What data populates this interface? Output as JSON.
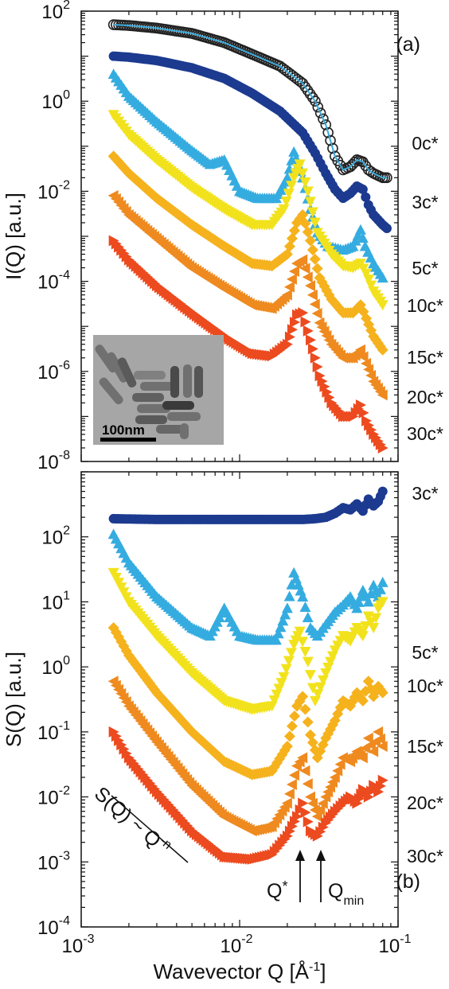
{
  "chart_data": [
    {
      "panel": "(a)",
      "type": "scatter",
      "scale": {
        "x": "log",
        "y": "log"
      },
      "xlim": [
        0.001,
        0.1
      ],
      "ylim": [
        1e-08,
        100
      ],
      "ylabel": "I(Q) [a.u.]",
      "y_tick_labels": [
        {
          "value": 100,
          "base": "10",
          "exp": "2"
        },
        {
          "value": 1,
          "base": "10",
          "exp": "0"
        },
        {
          "value": 0.01,
          "base": "10",
          "exp": "-2"
        },
        {
          "value": 0.0001,
          "base": "10",
          "exp": "-4"
        },
        {
          "value": 1e-06,
          "base": "10",
          "exp": "-6"
        },
        {
          "value": 1e-08,
          "base": "10",
          "exp": "-8"
        }
      ],
      "series": [
        {
          "name": "0c*",
          "color": "#222222",
          "marker": "circle-open",
          "fit_color": "#3aa8d8",
          "x": [
            0.0016,
            0.002,
            0.003,
            0.005,
            0.008,
            0.012,
            0.018,
            0.025,
            0.03,
            0.035,
            0.04,
            0.045,
            0.05,
            0.055,
            0.06,
            0.065,
            0.07,
            0.08,
            0.085
          ],
          "y": [
            50,
            48,
            42,
            32,
            20,
            11,
            6,
            2.5,
            1,
            0.3,
            0.06,
            0.03,
            0.035,
            0.05,
            0.045,
            0.03,
            0.025,
            0.02,
            0.02
          ]
        },
        {
          "name": "3c*",
          "color": "#1c3a8f",
          "marker": "circle",
          "x": [
            0.0016,
            0.002,
            0.003,
            0.005,
            0.008,
            0.012,
            0.018,
            0.025,
            0.03,
            0.035,
            0.04,
            0.045,
            0.05,
            0.055,
            0.06,
            0.065,
            0.07,
            0.08,
            0.085
          ],
          "y": [
            10,
            9.5,
            8,
            5.5,
            3.2,
            1.5,
            0.6,
            0.2,
            0.07,
            0.025,
            0.011,
            0.007,
            0.009,
            0.013,
            0.011,
            0.005,
            0.003,
            0.0018,
            0.0015
          ]
        },
        {
          "name": "5c*",
          "color": "#35ace0",
          "marker": "triangle-up",
          "x": [
            0.0016,
            0.002,
            0.003,
            0.005,
            0.0065,
            0.008,
            0.01,
            0.013,
            0.017,
            0.02,
            0.022,
            0.025,
            0.028,
            0.031,
            0.036,
            0.045,
            0.052,
            0.058,
            0.062,
            0.07,
            0.08
          ],
          "y": [
            4,
            1.3,
            0.35,
            0.08,
            0.04,
            0.05,
            0.01,
            0.007,
            0.007,
            0.02,
            0.075,
            0.02,
            0.004,
            0.0012,
            0.0006,
            0.0005,
            0.0006,
            0.0014,
            0.0006,
            0.00025,
            0.00012
          ]
        },
        {
          "name": "10c*",
          "color": "#f2e21d",
          "marker": "triangle-down",
          "x": [
            0.0016,
            0.002,
            0.003,
            0.005,
            0.008,
            0.012,
            0.016,
            0.019,
            0.022,
            0.024,
            0.027,
            0.031,
            0.038,
            0.045,
            0.052,
            0.058,
            0.063,
            0.07,
            0.08
          ],
          "y": [
            0.5,
            0.18,
            0.05,
            0.012,
            0.004,
            0.0018,
            0.0018,
            0.004,
            0.02,
            0.04,
            0.01,
            0.0012,
            0.0004,
            0.00022,
            0.0002,
            0.00025,
            0.00015,
            6e-05,
            3e-05
          ]
        },
        {
          "name": "15c*",
          "color": "#f5b21d",
          "marker": "diamond",
          "x": [
            0.0016,
            0.002,
            0.003,
            0.005,
            0.008,
            0.012,
            0.016,
            0.02,
            0.023,
            0.025,
            0.028,
            0.032,
            0.038,
            0.045,
            0.052,
            0.058,
            0.063,
            0.07,
            0.08
          ],
          "y": [
            0.06,
            0.025,
            0.007,
            0.0018,
            0.0006,
            0.00025,
            0.00022,
            0.0004,
            0.002,
            0.003,
            0.0008,
            0.00012,
            4e-05,
            2e-05,
            2e-05,
            3e-05,
            1.5e-05,
            6e-06,
            3e-06
          ]
        },
        {
          "name": "20c*",
          "color": "#ee8a1f",
          "marker": "triangle-left",
          "x": [
            0.0016,
            0.002,
            0.003,
            0.005,
            0.008,
            0.012,
            0.016,
            0.02,
            0.023,
            0.025,
            0.028,
            0.032,
            0.038,
            0.045,
            0.052,
            0.058,
            0.063,
            0.07,
            0.08
          ],
          "y": [
            0.008,
            0.003,
            0.0009,
            0.0002,
            7e-05,
            3e-05,
            2.5e-05,
            5e-05,
            0.00025,
            0.0003,
            8e-05,
            1.2e-05,
            4e-06,
            2e-06,
            2e-06,
            3e-06,
            1.5e-06,
            6e-07,
            3e-07
          ]
        },
        {
          "name": "30c*",
          "color": "#ec4a1f",
          "marker": "triangle-right",
          "x": [
            0.0016,
            0.002,
            0.003,
            0.005,
            0.008,
            0.012,
            0.016,
            0.02,
            0.023,
            0.025,
            0.028,
            0.032,
            0.038,
            0.045,
            0.052,
            0.058,
            0.063,
            0.07,
            0.08
          ],
          "y": [
            0.0008,
            0.0003,
            8e-05,
            2e-05,
            6e-06,
            2.5e-06,
            2.2e-06,
            4e-06,
            1.8e-05,
            2e-05,
            5e-06,
            8e-07,
            2e-07,
            1e-07,
            1e-07,
            1.8e-07,
            8e-08,
            4e-08,
            2e-08
          ]
        }
      ],
      "inset_scale_bar": "100nm"
    },
    {
      "panel": "(b)",
      "type": "scatter",
      "scale": {
        "x": "log",
        "y": "log"
      },
      "xlim": [
        0.001,
        0.1
      ],
      "ylim": [
        0.0001,
        1000
      ],
      "xlabel": "Wavevector Q [Å",
      "xlabel_sup": "-1",
      "xlabel_end": "]",
      "ylabel": "S(Q) [a.u.]",
      "x_tick_labels": [
        {
          "value": 0.001,
          "base": "10",
          "exp": "-3"
        },
        {
          "value": 0.01,
          "base": "10",
          "exp": "-2"
        },
        {
          "value": 0.1,
          "base": "10",
          "exp": "-1"
        }
      ],
      "y_tick_labels": [
        {
          "value": 100,
          "base": "10",
          "exp": "2"
        },
        {
          "value": 10,
          "base": "10",
          "exp": "1"
        },
        {
          "value": 1,
          "base": "10",
          "exp": "0"
        },
        {
          "value": 0.1,
          "base": "10",
          "exp": "-1"
        },
        {
          "value": 0.01,
          "base": "10",
          "exp": "-2"
        },
        {
          "value": 0.001,
          "base": "10",
          "exp": "-3"
        },
        {
          "value": 0.0001,
          "base": "10",
          "exp": "-4"
        }
      ],
      "series": [
        {
          "name": "3c*",
          "color": "#1c3a8f",
          "marker": "circle",
          "x": [
            0.0016,
            0.003,
            0.006,
            0.01,
            0.015,
            0.02,
            0.025,
            0.03,
            0.035,
            0.04,
            0.045,
            0.05,
            0.055,
            0.06,
            0.065,
            0.07,
            0.075,
            0.08
          ],
          "y": [
            190,
            185,
            185,
            185,
            185,
            185,
            185,
            190,
            200,
            230,
            280,
            260,
            320,
            250,
            380,
            300,
            350,
            500
          ]
        },
        {
          "name": "5c*",
          "color": "#35ace0",
          "marker": "triangle-up",
          "x": [
            0.0016,
            0.002,
            0.003,
            0.005,
            0.0065,
            0.008,
            0.01,
            0.013,
            0.017,
            0.02,
            0.022,
            0.025,
            0.028,
            0.031,
            0.035,
            0.04,
            0.045,
            0.05,
            0.055,
            0.06,
            0.065,
            0.07,
            0.075,
            0.08
          ],
          "y": [
            110,
            40,
            12,
            4,
            3,
            8,
            3,
            2.6,
            2.6,
            8,
            28,
            12,
            4,
            3,
            4.5,
            7,
            9,
            12,
            8,
            15,
            10,
            18,
            12,
            20
          ]
        },
        {
          "name": "10c*",
          "color": "#f2e21d",
          "marker": "triangle-down",
          "x": [
            0.0016,
            0.002,
            0.003,
            0.005,
            0.008,
            0.012,
            0.016,
            0.019,
            0.022,
            0.024,
            0.027,
            0.03,
            0.035,
            0.04,
            0.045,
            0.05,
            0.055,
            0.06,
            0.065,
            0.07,
            0.075,
            0.08
          ],
          "y": [
            28,
            10,
            3,
            0.8,
            0.3,
            0.22,
            0.25,
            0.7,
            2.2,
            3.5,
            1.2,
            0.3,
            0.8,
            1.8,
            3,
            2.5,
            4,
            3,
            6,
            4,
            8,
            10
          ]
        },
        {
          "name": "15c*",
          "color": "#f5b21d",
          "marker": "diamond",
          "x": [
            0.0016,
            0.002,
            0.003,
            0.005,
            0.008,
            0.012,
            0.016,
            0.02,
            0.023,
            0.025,
            0.028,
            0.031,
            0.035,
            0.04,
            0.045,
            0.05,
            0.055,
            0.06,
            0.065,
            0.07,
            0.075,
            0.08
          ],
          "y": [
            4,
            1.5,
            0.4,
            0.1,
            0.035,
            0.022,
            0.025,
            0.06,
            0.25,
            0.35,
            0.09,
            0.04,
            0.08,
            0.15,
            0.3,
            0.25,
            0.4,
            0.3,
            0.6,
            0.35,
            0.5,
            0.4
          ]
        },
        {
          "name": "20c*",
          "color": "#ee8a1f",
          "marker": "triangle-left",
          "x": [
            0.0016,
            0.002,
            0.003,
            0.005,
            0.008,
            0.012,
            0.016,
            0.02,
            0.023,
            0.025,
            0.028,
            0.031,
            0.035,
            0.04,
            0.045,
            0.05,
            0.055,
            0.06,
            0.065,
            0.07,
            0.075,
            0.08
          ],
          "y": [
            0.6,
            0.25,
            0.07,
            0.015,
            0.005,
            0.003,
            0.0035,
            0.008,
            0.03,
            0.04,
            0.01,
            0.005,
            0.01,
            0.02,
            0.04,
            0.035,
            0.05,
            0.04,
            0.08,
            0.05,
            0.1,
            0.06
          ]
        },
        {
          "name": "30c*",
          "color": "#ec4a1f",
          "marker": "triangle-right",
          "x": [
            0.0016,
            0.002,
            0.003,
            0.005,
            0.008,
            0.012,
            0.016,
            0.02,
            0.023,
            0.025,
            0.028,
            0.031,
            0.035,
            0.04,
            0.045,
            0.05,
            0.055,
            0.06,
            0.065,
            0.07,
            0.075,
            0.08
          ],
          "y": [
            0.1,
            0.04,
            0.012,
            0.003,
            0.0012,
            0.0011,
            0.0013,
            0.0025,
            0.005,
            0.008,
            0.003,
            0.0025,
            0.004,
            0.006,
            0.008,
            0.01,
            0.008,
            0.013,
            0.01,
            0.015,
            0.012,
            0.018
          ]
        }
      ],
      "annotations": {
        "power_law_main": "S(Q) ~ Q",
        "power_law_sup": "-n",
        "qstar_main": "Q",
        "qstar_sup": "*",
        "qmin_main": "Q",
        "qmin_sub": "min"
      }
    }
  ]
}
